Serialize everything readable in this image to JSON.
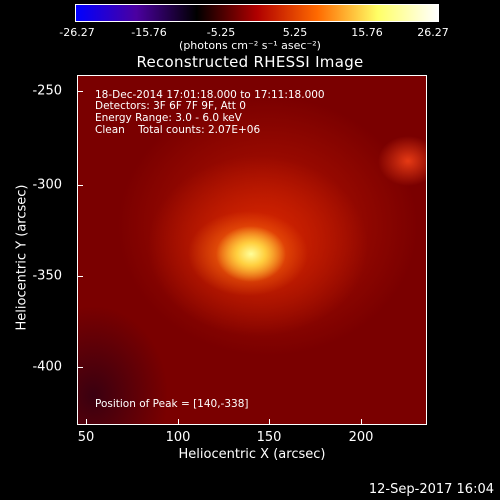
{
  "colorbar": {
    "ticks": [
      "-26.27",
      "-15.76",
      "-5.25",
      "5.25",
      "15.76",
      "26.27"
    ],
    "units_label": "(photons cm⁻² s⁻¹ asec⁻²)",
    "colors": [
      "#0000ff",
      "#4b00a0",
      "#000000",
      "#b00000",
      "#ff6a00",
      "#ffff66",
      "#ffffff"
    ]
  },
  "title": "Reconstructed RHESSI Image",
  "info": {
    "time_range": "18-Dec-2014 17:01:18.000 to 17:11:18.000",
    "detectors": "Detectors: 3F 6F 7F 9F, Att 0",
    "energy": "Energy Range: 3.0 - 6.0 keV",
    "method": "Clean    Total counts: 2.07E+06",
    "peak": "Position of Peak = [140,-338]"
  },
  "axes": {
    "xlabel": "Heliocentric X (arcsec)",
    "ylabel": "Heliocentric Y (arcsec)",
    "xticks": [
      "50",
      "100",
      "150",
      "200"
    ],
    "yticks": [
      "-250",
      "-300",
      "-350",
      "-400"
    ]
  },
  "footer": {
    "date": "12-Sep-2017 16:04"
  }
}
